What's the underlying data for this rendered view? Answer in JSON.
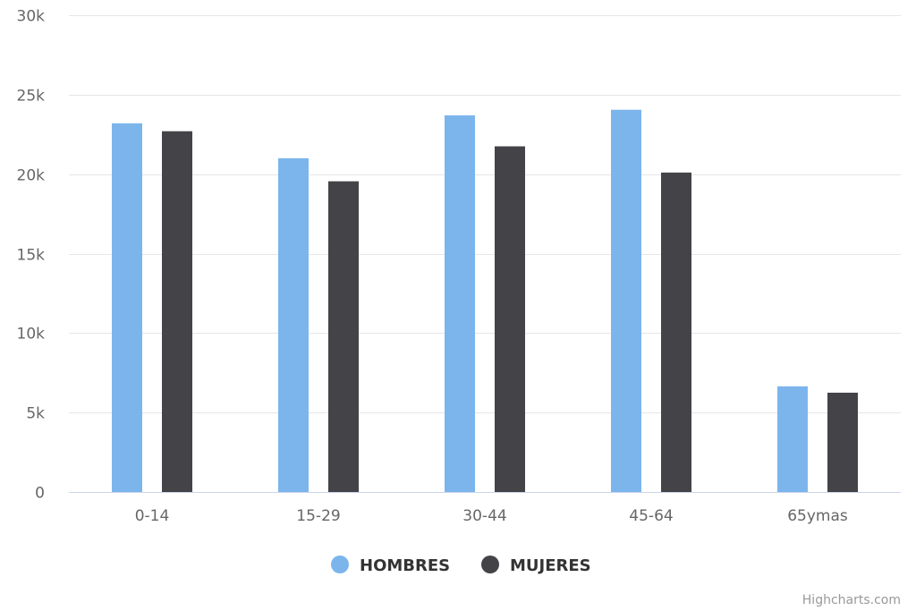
{
  "chart_data": {
    "type": "bar",
    "categories": [
      "0-14",
      "15-29",
      "30-44",
      "45-64",
      "65ymas"
    ],
    "series": [
      {
        "name": "HOMBRES",
        "color": "#7cb5ec",
        "values": [
          23200,
          21000,
          23700,
          24050,
          6650
        ]
      },
      {
        "name": "MUJERES",
        "color": "#434348",
        "values": [
          22700,
          19550,
          21750,
          20100,
          6250
        ]
      }
    ],
    "ylim": [
      0,
      30000
    ],
    "yticks": [
      {
        "value": 0,
        "label": "0"
      },
      {
        "value": 5000,
        "label": "5k"
      },
      {
        "value": 10000,
        "label": "10k"
      },
      {
        "value": 15000,
        "label": "15k"
      },
      {
        "value": 20000,
        "label": "20k"
      },
      {
        "value": 25000,
        "label": "25k"
      },
      {
        "value": 30000,
        "label": "30k"
      }
    ],
    "grid": true,
    "legend_position": "bottom-center"
  },
  "credits": "Highcharts.com"
}
